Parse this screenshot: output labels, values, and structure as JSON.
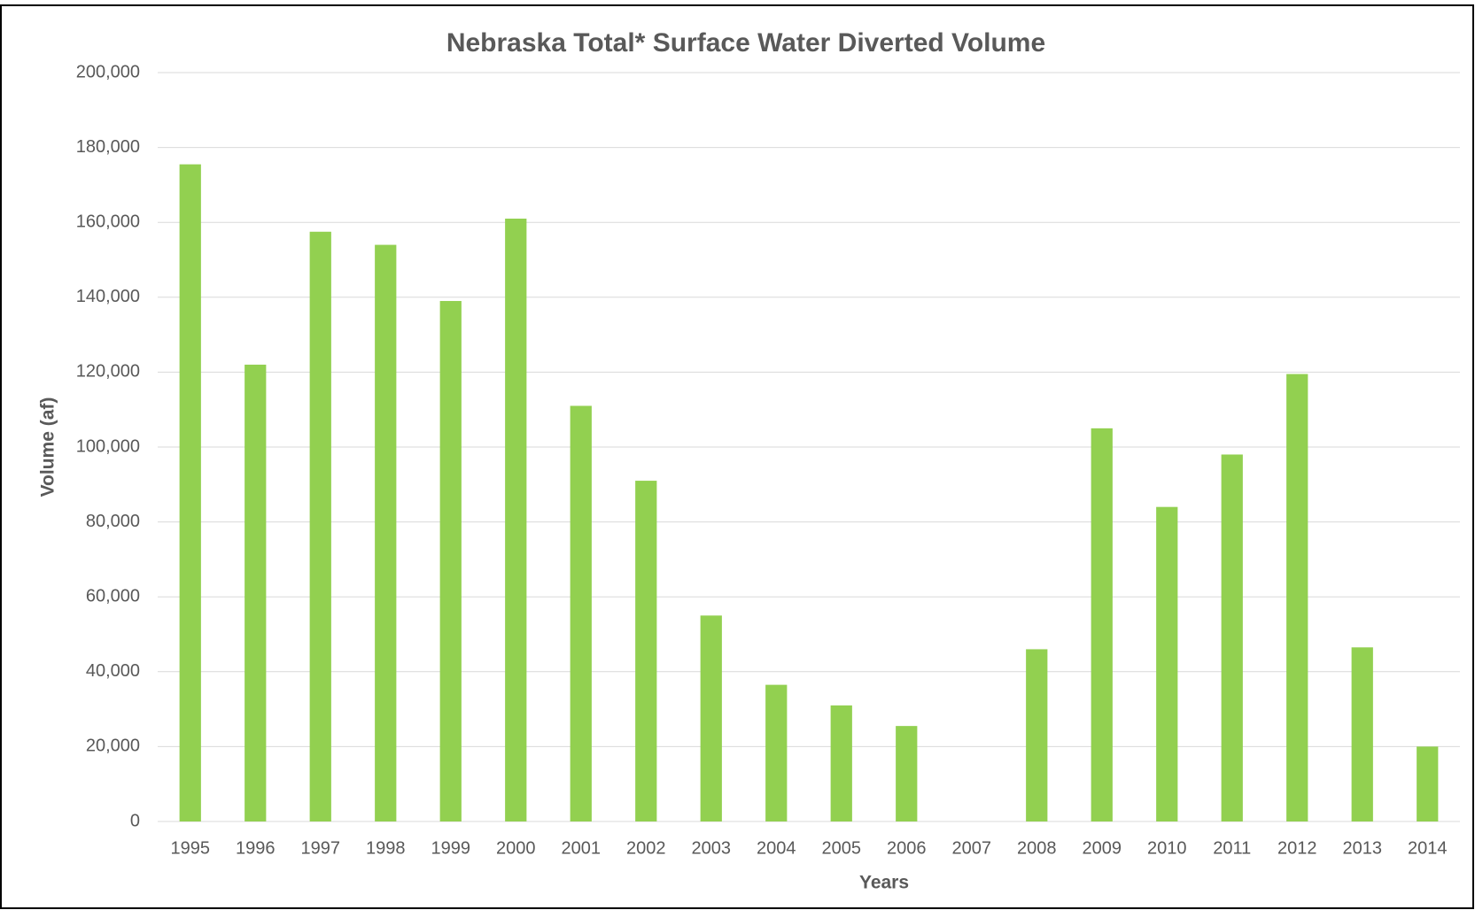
{
  "chart_data": {
    "type": "bar",
    "title": "Nebraska Total* Surface Water Diverted Volume",
    "x_label": "Years",
    "y_label": "Volume (af)",
    "categories": [
      "1995",
      "1996",
      "1997",
      "1998",
      "1999",
      "2000",
      "2001",
      "2002",
      "2003",
      "2004",
      "2005",
      "2006",
      "2007",
      "2008",
      "2009",
      "2010",
      "2011",
      "2012",
      "2013",
      "2014"
    ],
    "values": [
      175500,
      122000,
      157500,
      154000,
      139000,
      161000,
      111000,
      91000,
      55000,
      36500,
      31000,
      25500,
      0,
      46000,
      105000,
      84000,
      98000,
      119500,
      46500,
      20000
    ],
    "color": "#92d050",
    "ylim": [
      0,
      200000
    ],
    "yticks": [
      0,
      {
        "value": 20000,
        "label": "20,000"
      },
      {
        "value": 40000,
        "label": "40,000"
      },
      {
        "value": 60000,
        "label": "60,000"
      },
      {
        "value": 80000,
        "label": "80,000"
      },
      {
        "value": 100000,
        "label": "100,000"
      },
      {
        "value": 120000,
        "label": "120,000"
      },
      {
        "value": 140000,
        "label": "140,000"
      },
      {
        "value": 160000,
        "label": "160,000"
      },
      {
        "value": 180000,
        "label": "180,000"
      },
      {
        "value": 200000,
        "label": "200,000"
      }
    ],
    "grid": true
  }
}
